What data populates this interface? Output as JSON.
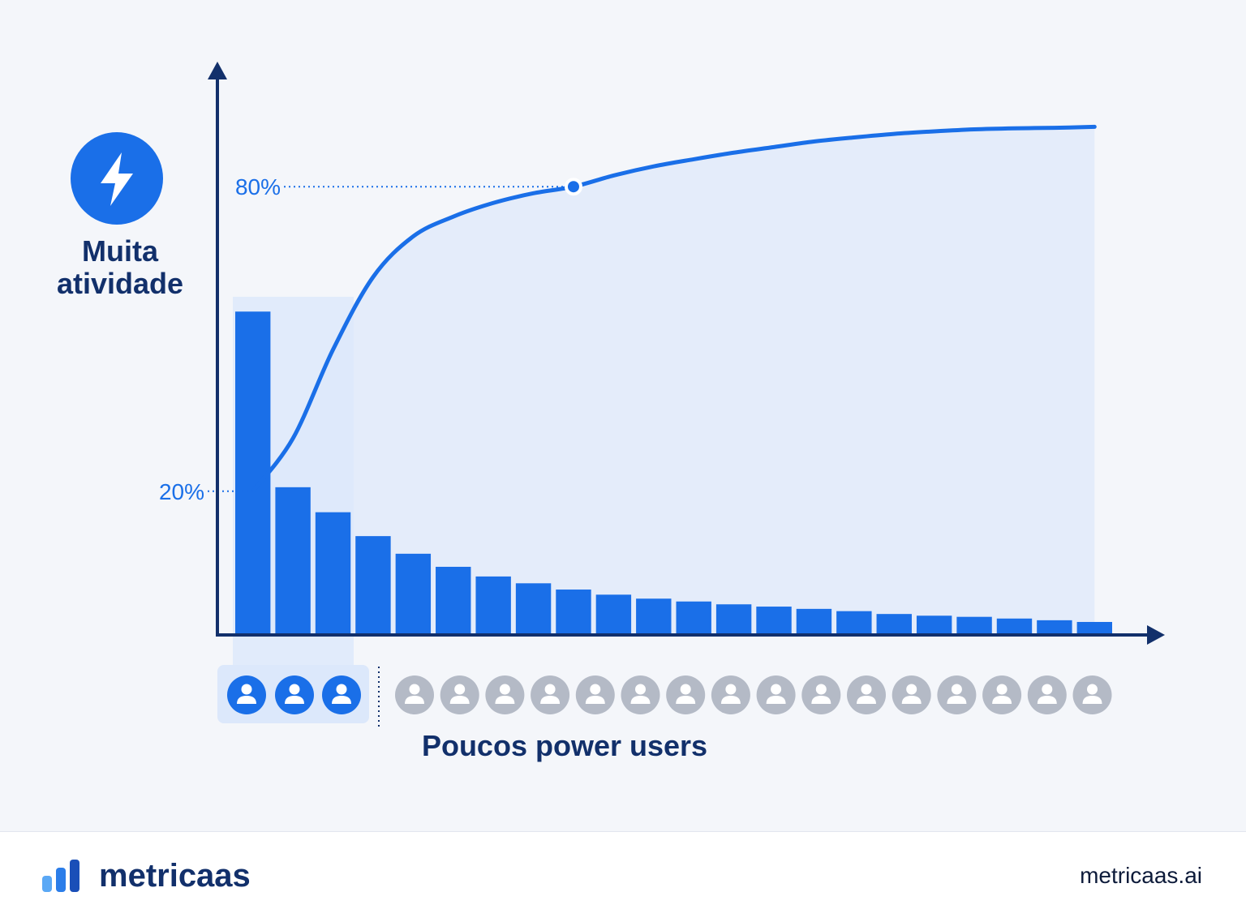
{
  "chart_data": {
    "type": "bar",
    "ylabel": "Muita atividade",
    "xlabel": "Poucos power users",
    "categories": [
      null,
      null,
      null,
      null,
      null,
      null,
      null,
      null,
      null,
      null,
      null,
      null,
      null,
      null,
      null,
      null,
      null,
      null,
      null,
      null,
      null,
      null
    ],
    "ylim": [
      0,
      100
    ],
    "y2lim": [
      -8,
      104
    ],
    "series": [
      {
        "type": "bar",
        "color": "#1a6fe8",
        "values": [
          56.6,
          25.7,
          21.3,
          17.1,
          14.0,
          11.7,
          10.0,
          8.8,
          7.7,
          6.8,
          6.1,
          5.6,
          5.1,
          4.7,
          4.3,
          3.9,
          3.4,
          3.1,
          2.9,
          2.6,
          2.3,
          2.0
        ]
      },
      {
        "type": "line",
        "axis": "y2",
        "color": "#1a6fe8",
        "values": [
          20,
          30.4,
          47.9,
          62.2,
          70.2,
          74.1,
          76.8,
          78.7,
          80,
          82.2,
          84,
          85.4,
          86.7,
          87.8,
          88.9,
          89.7,
          90.4,
          90.9,
          91.3,
          91.5,
          91.6,
          91.8
        ],
        "value_labels": [
          "20%",
          null,
          null,
          null,
          null,
          null,
          null,
          null,
          "80%",
          null,
          null,
          null,
          null,
          null,
          null,
          null,
          null,
          null,
          null,
          null,
          null,
          null
        ]
      }
    ]
  },
  "footer": {
    "brand": "metricaas",
    "url": "metricaas.ai"
  }
}
